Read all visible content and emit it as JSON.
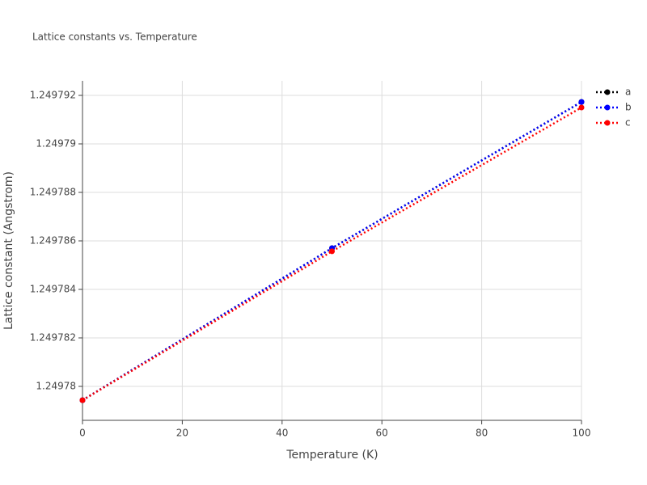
{
  "chart_data": {
    "type": "line",
    "title": "Lattice constants vs. Temperature",
    "xlabel": "Temperature (K)",
    "ylabel": "Lattice constant (Angstrom)",
    "x": [
      0,
      50,
      100
    ],
    "series": [
      {
        "name": "a",
        "color": "#000000",
        "values": [
          1.24977943,
          1.2497857,
          1.24979173
        ]
      },
      {
        "name": "b",
        "color": "#0000ff",
        "values": [
          1.24977943,
          1.2497857,
          1.24979173
        ]
      },
      {
        "name": "c",
        "color": "#ff0000",
        "values": [
          1.24977943,
          1.24978557,
          1.2497915
        ]
      }
    ],
    "xlim": [
      0,
      100
    ],
    "xticks": [
      0,
      20,
      40,
      60,
      80,
      100
    ],
    "ylim": [
      1.2497786,
      1.2497926
    ],
    "yticks": [
      1.24978,
      1.249782,
      1.249784,
      1.249786,
      1.249788,
      1.24979,
      1.249792
    ],
    "grid": true,
    "legend": "right"
  }
}
